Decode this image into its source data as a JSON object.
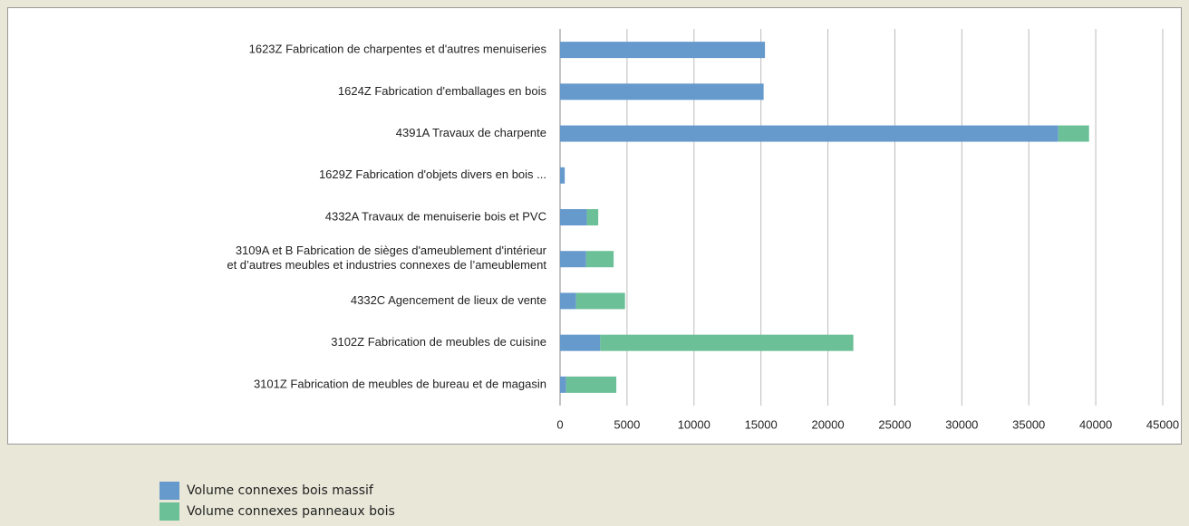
{
  "chart_data": {
    "type": "stacked-barh",
    "categories": [
      "1623Z Fabrication de charpentes et d'autres menuiseries",
      "1624Z Fabrication d'emballages en bois",
      "4391A Travaux de charpente",
      "1629Z Fabrication d'objets divers en bois ...",
      "4332A Travaux de menuiserie bois et PVC",
      "3109A et B Fabrication de sièges d'ameublement d'intérieur\n et  d’autres meubles et industries connexes de l’ameublement",
      "4332C Agencement de lieux de vente",
      "3102Z Fabrication de meubles de cuisine",
      "3101Z Fabrication de meubles de bureau et de magasin"
    ],
    "series": [
      {
        "name": "Volume connexes bois massif",
        "color": "#6699cc",
        "values": [
          15300,
          15200,
          37200,
          350,
          2000,
          1950,
          1200,
          3000,
          450
        ]
      },
      {
        "name": "Volume connexes panneaux bois",
        "color": "#6cc097",
        "values": [
          0,
          0,
          2300,
          0,
          850,
          2050,
          3650,
          18900,
          3750
        ]
      }
    ],
    "xlim": [
      0,
      45000
    ],
    "xticks": [
      0,
      5000,
      10000,
      15000,
      20000,
      25000,
      30000,
      35000,
      40000,
      45000
    ],
    "grid": true
  }
}
